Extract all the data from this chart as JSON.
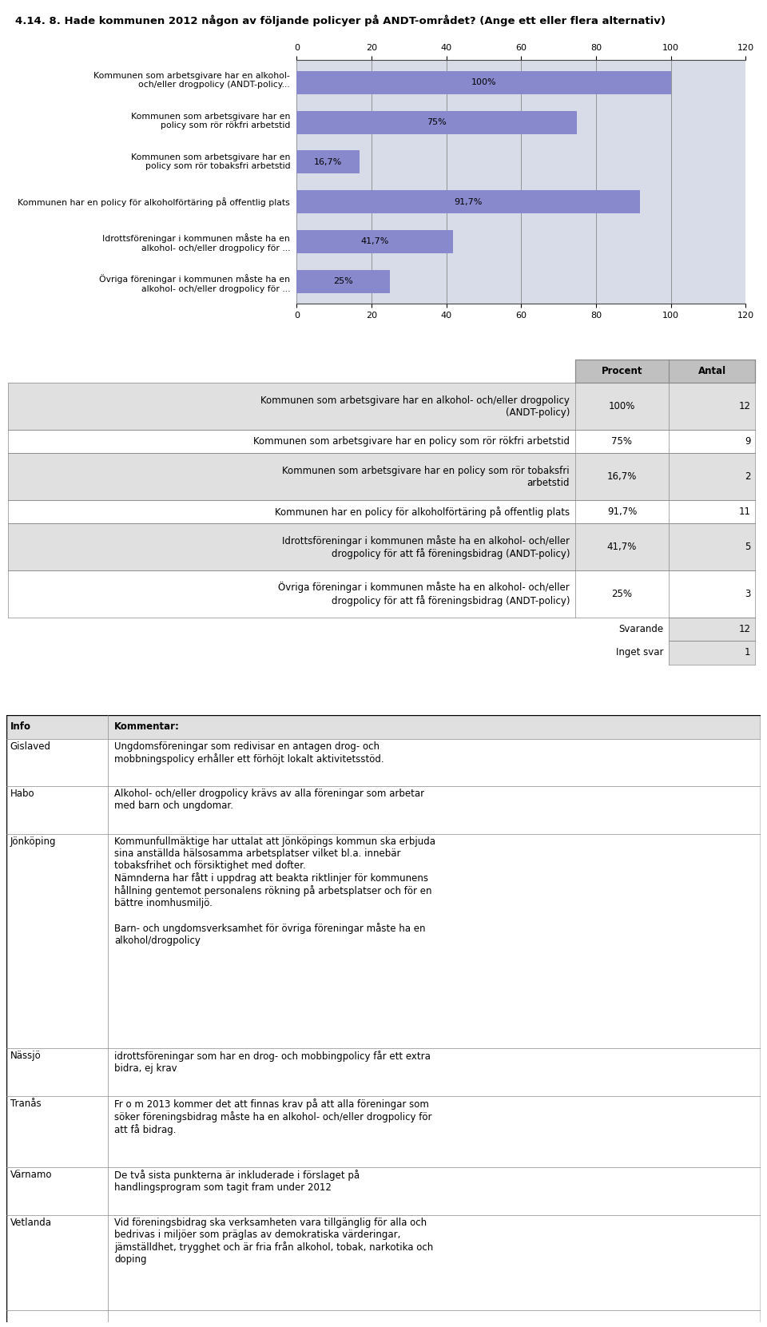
{
  "title": "4.14. 8. Hade kommunen 2012 någon av följande policyer på ANDT-området? (Ange ett eller flera alternativ)",
  "chart_bg": "#d8dce8",
  "bar_color": "#8888cc",
  "bar_labels": [
    "Kommunen som arbetsgivare har en alkohol-\noch/eller drogpolicy (ANDT-policy...",
    "Kommunen som arbetsgivare har en\npolicy som rör rökfri arbetstid",
    "Kommunen som arbetsgivare har en\npolicy som rör tobaksfri arbetstid",
    "Kommunen har en policy för alkoholförtäring på offentlig plats",
    "Idrottsföreningar i kommunen måste ha en\nalkohol- och/eller drogpolicy för ...",
    "Övriga föreningar i kommunen måste ha en\nalkohol- och/eller drogpolicy för ..."
  ],
  "bar_values": [
    100.0,
    75.0,
    16.7,
    91.7,
    41.7,
    25.0
  ],
  "bar_value_labels": [
    "100%",
    "75%",
    "16,7%",
    "91,7%",
    "41,7%",
    "25%"
  ],
  "xlim": [
    0,
    120
  ],
  "xticks": [
    0,
    20,
    40,
    60,
    80,
    100,
    120
  ],
  "table_rows": [
    [
      "Kommunen som arbetsgivare har en alkohol- och/eller drogpolicy\n(ANDT-policy)",
      "100%",
      "12"
    ],
    [
      "Kommunen som arbetsgivare har en policy som rör rökfri arbetstid",
      "75%",
      "9"
    ],
    [
      "Kommunen som arbetsgivare har en policy som rör tobaksfri\narbetstid",
      "16,7%",
      "2"
    ],
    [
      "Kommunen har en policy för alkoholförtäring på offentlig plats",
      "91,7%",
      "11"
    ],
    [
      "Idrottsföreningar i kommunen måste ha en alkohol- och/eller\ndrogpolicy för att få föreningsbidrag (ANDT-policy)",
      "41,7%",
      "5"
    ],
    [
      "Övriga föreningar i kommunen måste ha en alkohol- och/eller\ndrogpolicy för att få föreningsbidrag (ANDT-policy)",
      "25%",
      "3"
    ],
    [
      "Svarande",
      "",
      "12"
    ],
    [
      "Inget svar",
      "",
      "1"
    ]
  ],
  "comments": [
    [
      "Info",
      "Kommentar:"
    ],
    [
      "Gislaved",
      "Ungdomsföreningar som redivisar en antagen drog- och\nmobbningspolicy erhåller ett förhöjt lokalt aktivitetsstöd."
    ],
    [
      "Habo",
      "Alkohol- och/eller drogpolicy krävs av alla föreningar som arbetar\nmed barn och ungdomar."
    ],
    [
      "Jönköping",
      "Kommunfullmäktige har uttalat att Jönköpings kommun ska erbjuda\nsina anställda hälsosamma arbetsplatser vilket bl.a. innebär\ntobaksfrihet och försiktighet med dofter.\nNämnderna har fått i uppdrag att beakta riktlinjer för kommunens\nhållning gentemot personalens rökning på arbetsplatser och för en\nbättre inomhusmiljö.\n\nBarn- och ungdomsverksamhet för övriga föreningar måste ha en\nalkohol/drogpolicy"
    ],
    [
      "Nässjö",
      "idrottsföreningar som har en drog- och mobbingpolicy får ett extra\nbidra, ej krav"
    ],
    [
      "Tranås",
      "Fr o m 2013 kommer det att finnas krav på att alla föreningar som\nsöker föreningsbidrag måste ha en alkohol- och/eller drogpolicy för\natt få bidrag."
    ],
    [
      "Värnamo",
      "De två sista punkterna är inkluderade i förslaget på\nhandlingsprogram som tagit fram under 2012"
    ],
    [
      "Vetlanda",
      "Vid föreningsbidrag ska verksamheten vara tillgänglig för alla och\nbedrivas i miljöer som präglas av demokratiska värderingar,\njämställdhet, trygghet och är fria från alkohol, tobak, narkotika och\ndoping"
    ]
  ],
  "white_bg": "#ffffff",
  "gray_header_bg": "#c0c0c0",
  "light_gray_bg": "#e0e0e0",
  "border_color": "#888888",
  "dark_border": "#444444",
  "text_color": "#000000",
  "title_fontsize": 9.5,
  "bar_label_fontsize": 7.8,
  "bar_value_fontsize": 8.0,
  "table_fontsize": 8.5,
  "comment_fontsize": 8.5
}
